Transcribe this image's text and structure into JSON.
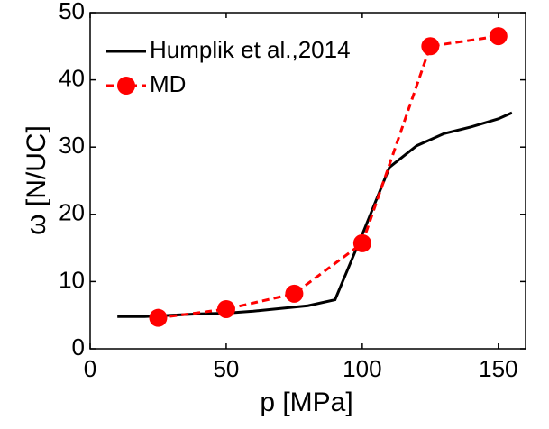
{
  "chart_data": {
    "type": "line",
    "x_label": "p [MPa]",
    "y_label": "ω [N/UC]",
    "xlim": [
      0,
      160
    ],
    "ylim": [
      0,
      50
    ],
    "xticks": [
      0,
      50,
      100,
      150
    ],
    "yticks": [
      0,
      10,
      20,
      30,
      40,
      50
    ],
    "legend": "top-left",
    "series": [
      {
        "name": "Humplik et al.,2014",
        "color": "#000000",
        "dashed": false,
        "markers": false,
        "x": [
          10,
          20,
          30,
          40,
          50,
          60,
          70,
          80,
          90,
          100,
          110,
          120,
          130,
          140,
          150,
          155
        ],
        "values": [
          4.8,
          4.8,
          5.0,
          5.2,
          5.3,
          5.6,
          6.0,
          6.4,
          7.3,
          17,
          27,
          30.2,
          32,
          33,
          34.2,
          35.1
        ]
      },
      {
        "name": "MD",
        "color": "#ff0000",
        "dashed": true,
        "markers": true,
        "x": [
          25,
          50,
          75,
          100,
          125,
          150
        ],
        "values": [
          4.6,
          5.9,
          8.2,
          15.7,
          45,
          46.5
        ]
      }
    ]
  }
}
